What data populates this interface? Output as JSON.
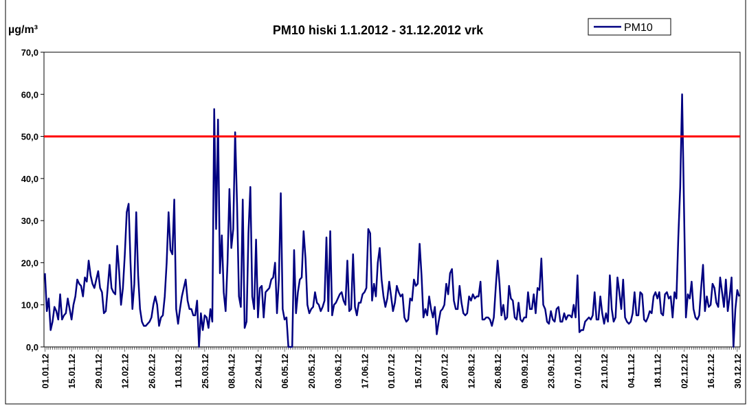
{
  "chart_data": {
    "type": "line",
    "title": "PM10 hiski 1.1.2012 - 31.12.2012 vrk",
    "y_label": "µg/m³",
    "categories": [
      "01.01.12",
      null,
      null,
      null,
      null,
      null,
      null,
      null,
      null,
      null,
      null,
      null,
      null,
      null,
      "15.01.12",
      null,
      null,
      null,
      null,
      null,
      null,
      null,
      null,
      null,
      null,
      null,
      null,
      null,
      "29.01.12",
      null,
      null,
      null,
      null,
      null,
      null,
      null,
      null,
      null,
      null,
      null,
      null,
      null,
      "12.02.12",
      null,
      null,
      null,
      null,
      null,
      null,
      null,
      null,
      null,
      null,
      null,
      null,
      null,
      "26.02.12",
      null,
      null,
      null,
      null,
      null,
      null,
      null,
      null,
      null,
      null,
      null,
      null,
      null,
      "11.03.12",
      null,
      null,
      null,
      null,
      null,
      null,
      null,
      null,
      null,
      null,
      null,
      null,
      null,
      "25.03.12",
      null,
      null,
      null,
      null,
      null,
      null,
      null,
      null,
      null,
      null,
      null,
      null,
      null,
      "08.04.12",
      null,
      null,
      null,
      null,
      null,
      null,
      null,
      null,
      null,
      null,
      null,
      null,
      null,
      "22.04.12",
      null,
      null,
      null,
      null,
      null,
      null,
      null,
      null,
      null,
      null,
      null,
      null,
      null,
      "06.05.12",
      null,
      null,
      null,
      null,
      null,
      null,
      null,
      null,
      null,
      null,
      null,
      null,
      null,
      "20.05.12",
      null,
      null,
      null,
      null,
      null,
      null,
      null,
      null,
      null,
      null,
      null,
      null,
      null,
      "03.06.12",
      null,
      null,
      null,
      null,
      null,
      null,
      null,
      null,
      null,
      null,
      null,
      null,
      null,
      "17.06.12",
      null,
      null,
      null,
      null,
      null,
      null,
      null,
      null,
      null,
      null,
      null,
      null,
      null,
      "01.07.12",
      null,
      null,
      null,
      null,
      null,
      null,
      null,
      null,
      null,
      null,
      null,
      null,
      null,
      "15.07.12",
      null,
      null,
      null,
      null,
      null,
      null,
      null,
      null,
      null,
      null,
      null,
      null,
      null,
      "29.07.12",
      null,
      null,
      null,
      null,
      null,
      null,
      null,
      null,
      null,
      null,
      null,
      null,
      null,
      "12.08.12",
      null,
      null,
      null,
      null,
      null,
      null,
      null,
      null,
      null,
      null,
      null,
      null,
      null,
      "26.08.12",
      null,
      null,
      null,
      null,
      null,
      null,
      null,
      null,
      null,
      null,
      null,
      null,
      null,
      "09.09.12",
      null,
      null,
      null,
      null,
      null,
      null,
      null,
      null,
      null,
      null,
      null,
      null,
      null,
      "23.09.12",
      null,
      null,
      null,
      null,
      null,
      null,
      null,
      null,
      null,
      null,
      null,
      null,
      null,
      "07.10.12",
      null,
      null,
      null,
      null,
      null,
      null,
      null,
      null,
      null,
      null,
      null,
      null,
      null,
      "21.10.12",
      null,
      null,
      null,
      null,
      null,
      null,
      null,
      null,
      null,
      null,
      null,
      null,
      null,
      "04.11.12",
      null,
      null,
      null,
      null,
      null,
      null,
      null,
      null,
      null,
      null,
      null,
      null,
      null,
      "18.11.12",
      null,
      null,
      null,
      null,
      null,
      null,
      null,
      null,
      null,
      null,
      null,
      null,
      null,
      "02.12.12",
      null,
      null,
      null,
      null,
      null,
      null,
      null,
      null,
      null,
      null,
      null,
      null,
      null,
      "16.12.12",
      null,
      null,
      null,
      null,
      null,
      null,
      null,
      null,
      null,
      null,
      null,
      null,
      null,
      "30.12.12",
      null
    ],
    "series": [
      {
        "name": "PM10",
        "color": "#000080",
        "values": [
          17.5,
          8.5,
          11.5,
          4,
          6,
          9.5,
          8.5,
          6.5,
          12.5,
          6.5,
          7.5,
          8,
          11.5,
          9,
          6.5,
          10,
          12,
          16,
          15,
          14.5,
          12,
          16.5,
          15.5,
          20.5,
          17,
          15,
          14,
          16,
          18,
          14,
          13,
          8,
          8.5,
          14,
          19.5,
          14,
          13,
          12.5,
          24,
          18,
          10,
          14,
          22,
          32,
          34,
          20,
          9,
          15,
          32,
          17,
          9,
          6,
          5,
          5,
          5.5,
          6,
          7,
          10,
          12,
          10,
          5,
          7,
          7.5,
          12,
          20,
          32,
          23,
          22,
          35,
          9,
          5.5,
          9,
          12,
          14,
          16,
          11,
          9,
          9,
          7.5,
          7.5,
          11,
          0,
          8,
          4,
          7.5,
          7,
          4.5,
          9,
          6,
          56.5,
          28,
          54,
          17.5,
          26.5,
          13,
          8.5,
          20,
          37.5,
          23.5,
          28,
          51,
          34,
          12,
          9.5,
          35,
          4.5,
          6,
          27,
          38,
          12,
          9,
          25.5,
          7,
          14,
          14.5,
          7,
          13,
          13.5,
          14,
          16,
          16.5,
          20,
          8,
          16,
          36.5,
          9,
          6.5,
          7,
          0,
          0,
          0,
          23,
          8,
          13,
          16,
          16.5,
          27.5,
          21,
          10,
          8,
          9,
          9.5,
          13,
          10.5,
          10,
          8.5,
          9.5,
          11,
          26,
          8.5,
          27.5,
          7.5,
          10,
          10.5,
          11.5,
          12.5,
          13,
          11,
          10,
          20.5,
          8.5,
          9,
          22,
          9.5,
          7.5,
          10.5,
          10.5,
          12.5,
          13,
          14,
          28,
          27,
          11,
          15,
          12,
          20,
          23.5,
          16,
          12,
          9.5,
          11.5,
          15.5,
          12,
          8.5,
          10.5,
          14.5,
          13,
          12,
          12.5,
          7,
          6,
          6.5,
          11.5,
          11,
          16,
          14.5,
          15,
          24.5,
          17,
          7,
          9,
          7.5,
          12,
          9,
          7,
          9.5,
          3,
          6,
          8.5,
          9,
          10,
          15,
          12.5,
          17.5,
          18.5,
          11,
          9,
          9,
          14.5,
          10.5,
          8,
          7.5,
          8,
          12,
          11,
          12.5,
          11.5,
          12,
          12,
          15.5,
          6.5,
          6.5,
          7,
          7,
          6.5,
          5,
          7,
          14,
          20.5,
          15,
          7.5,
          10,
          6.5,
          7,
          14.5,
          11.5,
          11,
          7,
          6.5,
          10.5,
          6.5,
          6,
          7,
          7,
          13,
          9,
          9,
          12.5,
          8,
          14,
          13.5,
          21,
          10,
          9,
          6,
          5.5,
          8.5,
          6.5,
          6,
          9,
          9.5,
          6,
          6,
          8,
          6.5,
          7.5,
          7.5,
          7,
          10,
          7,
          17,
          3.5,
          4,
          4,
          6,
          6.5,
          7,
          6.5,
          7.5,
          13,
          6.5,
          6.5,
          12,
          8,
          5.5,
          8,
          6,
          17,
          9,
          6,
          7,
          16.5,
          13,
          9,
          16,
          7,
          6,
          5.5,
          6,
          8,
          13,
          7.5,
          7.5,
          13,
          12.5,
          6.5,
          6,
          7,
          8.5,
          8,
          12,
          13,
          11.5,
          13,
          8,
          7.5,
          12.5,
          13,
          11.5,
          12,
          7,
          13,
          11.5,
          26,
          38,
          60,
          33,
          7,
          12.5,
          11.5,
          15.5,
          9,
          7,
          6.5,
          7.5,
          14,
          19.5,
          8.5,
          12,
          9.5,
          10,
          15,
          14,
          10.5,
          9.5,
          16.5,
          13,
          9.5,
          16,
          8.5,
          12,
          16.5,
          0,
          9,
          13.5,
          12
        ]
      }
    ],
    "reference_line": {
      "value": 50,
      "color": "#ff0000"
    },
    "ylim": [
      0,
      70
    ],
    "yticks": [
      {
        "value": 0,
        "label": "0,0"
      },
      {
        "value": 10,
        "label": "10,0"
      },
      {
        "value": 20,
        "label": "20,0"
      },
      {
        "value": 30,
        "label": "30,0"
      },
      {
        "value": 40,
        "label": "40,0"
      },
      {
        "value": 50,
        "label": "50,0"
      },
      {
        "value": 60,
        "label": "60,0"
      },
      {
        "value": 70,
        "label": "70,0"
      }
    ],
    "legend": "top-right"
  }
}
